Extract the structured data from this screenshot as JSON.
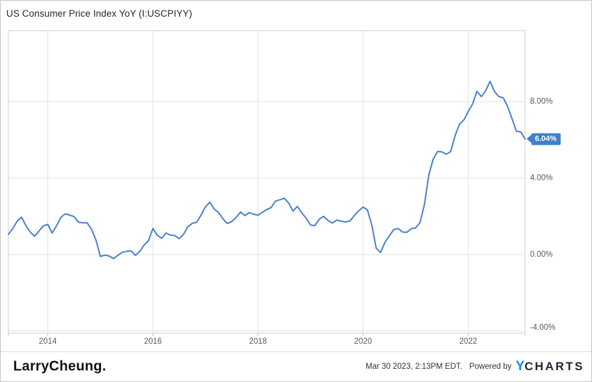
{
  "title": "US Consumer Price Index YoY (I:USCPIYY)",
  "chart_data": {
    "type": "line",
    "title": "US Consumer Price Index YoY (I:USCPIYY)",
    "series_name": "US Consumer Price Index YoY",
    "frequency": "monthly",
    "x_start": "2013-04",
    "x_end": "2023-02",
    "xlim": [
      2013.25,
      2023.0833
    ],
    "ylim": [
      -4.11,
      11.71
    ],
    "grid": true,
    "legend_position": "none",
    "line_color": "#4a80c8",
    "x_ticks": [
      2014,
      2016,
      2018,
      2020,
      2022
    ],
    "x_tick_labels": [
      "2014",
      "2016",
      "2018",
      "2020",
      "2022"
    ],
    "y_ticks": [
      8,
      4,
      0,
      -4
    ],
    "y_tick_labels": [
      "8.00%",
      "4.00%",
      "0.00%",
      "-4.00%"
    ],
    "last_value_label": "6.04%",
    "values": [
      1.06,
      1.36,
      1.75,
      1.96,
      1.52,
      1.18,
      0.96,
      1.24,
      1.5,
      1.58,
      1.13,
      1.51,
      1.95,
      2.13,
      2.07,
      1.99,
      1.7,
      1.66,
      1.66,
      1.32,
      0.76,
      -0.09,
      -0.03,
      -0.07,
      -0.2,
      -0.04,
      0.12,
      0.17,
      0.2,
      -0.04,
      0.17,
      0.5,
      0.73,
      1.37,
      1.02,
      0.85,
      1.13,
      1.02,
      1.0,
      0.84,
      1.06,
      1.46,
      1.64,
      1.69,
      2.07,
      2.5,
      2.74,
      2.38,
      2.2,
      1.87,
      1.63,
      1.73,
      1.94,
      2.23,
      2.04,
      2.2,
      2.11,
      2.07,
      2.21,
      2.36,
      2.46,
      2.8,
      2.87,
      2.95,
      2.7,
      2.28,
      2.52,
      2.18,
      1.91,
      1.55,
      1.52,
      1.86,
      2.0,
      1.79,
      1.65,
      1.81,
      1.75,
      1.71,
      1.76,
      2.05,
      2.29,
      2.49,
      2.33,
      1.54,
      0.33,
      0.12,
      0.65,
      0.99,
      1.31,
      1.37,
      1.18,
      1.17,
      1.36,
      1.4,
      1.68,
      2.62,
      4.16,
      4.99,
      5.39,
      5.37,
      5.25,
      5.39,
      6.22,
      6.81,
      7.04,
      7.48,
      7.87,
      8.54,
      8.26,
      8.58,
      9.06,
      8.52,
      8.26,
      8.2,
      7.75,
      7.11,
      6.45,
      6.41,
      6.04
    ]
  },
  "footer": {
    "watermark": "LarryCheung.",
    "timestamp": "Mar 30 2023, 2:13PM EDT.",
    "powered_by_label": "Powered by",
    "brand_y": "Y",
    "brand_rest": "CHARTS"
  }
}
